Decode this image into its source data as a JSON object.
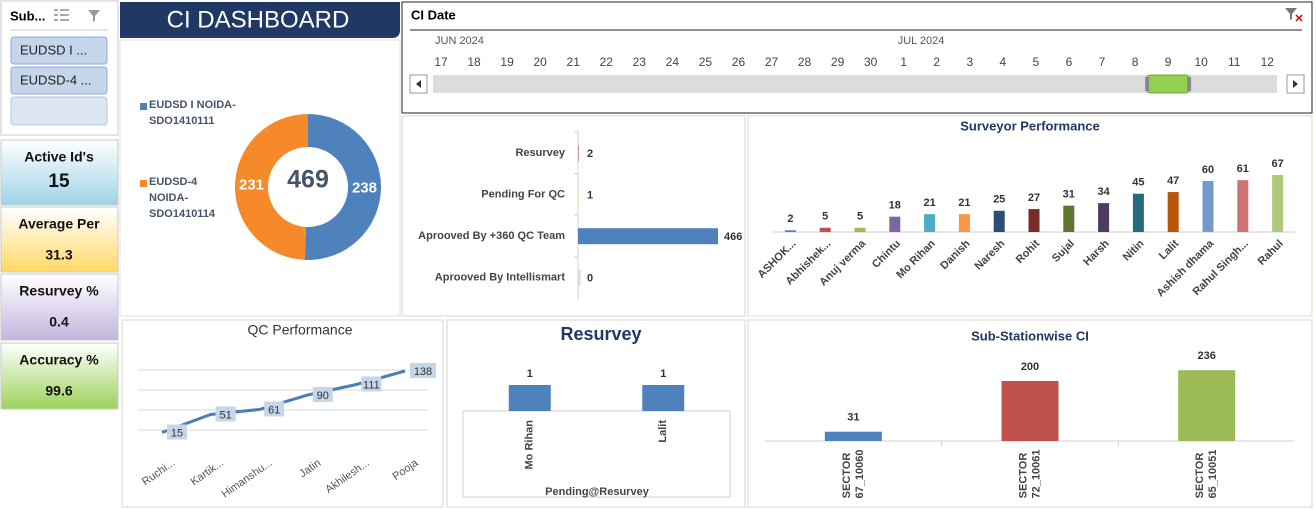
{
  "header": {
    "title": "CI DASHBOARD"
  },
  "slicer": {
    "title": "Sub...",
    "items": [
      "EUDSD I ...",
      "EUDSD-4 ..."
    ]
  },
  "kpis": [
    {
      "label": "Active Id's",
      "value": 15
    },
    {
      "label": "Average Per",
      "value": 31.3
    },
    {
      "label": "Resurvey %",
      "value": 0.4
    },
    {
      "label": "Accuracy %",
      "value": 99.6
    }
  ],
  "date_slicer": {
    "title": "CI Date",
    "months": [
      "JUN 2024",
      "JUL 2024"
    ],
    "days": [
      17,
      18,
      19,
      20,
      21,
      22,
      23,
      24,
      25,
      26,
      27,
      28,
      29,
      30,
      1,
      2,
      3,
      4,
      5,
      6,
      7,
      8,
      9,
      10,
      11,
      12
    ],
    "selected": 9
  },
  "chart_data": [
    {
      "type": "donut",
      "categories": [
        "EUDSD I NOIDA-SDO1410111",
        "EUDSD-4 NOIDA-SDO1410114"
      ],
      "values": [
        238,
        231
      ],
      "colors": [
        "#4f81bd",
        "#f68a2a"
      ],
      "total": 469
    },
    {
      "type": "hbar",
      "categories": [
        "Resurvey",
        "Pending For QC",
        "Aprooved By +360 QC Team",
        "Aprooved By Intellismart"
      ],
      "values": [
        2,
        1,
        466,
        0
      ],
      "colors": [
        "#c0504d",
        "#f2c85b",
        "#4f81bd",
        "#bfbfbf"
      ],
      "xlim": [
        0,
        466
      ]
    },
    {
      "type": "bar",
      "title": "Surveyor Performance",
      "categories": [
        "ASHOK...",
        "Abhishek...",
        "Anuj verma",
        "Chintu",
        "Mo Rihan",
        "Danish",
        "Naresh",
        "Rohit",
        "Sujal",
        "Harsh",
        "Nitin",
        "Lalit",
        "Ashish dhama",
        "Rahul Singh...",
        "Rahul"
      ],
      "values": [
        2,
        5,
        5,
        18,
        21,
        21,
        25,
        27,
        31,
        34,
        45,
        47,
        60,
        61,
        67
      ],
      "colors": [
        "#4f81bd",
        "#c0504d",
        "#9bbb59",
        "#8064a2",
        "#4bacc6",
        "#f79646",
        "#2c4d75",
        "#772c2a",
        "#5f7530",
        "#4d3b62",
        "#276a7c",
        "#b65708",
        "#729aca",
        "#cd7371",
        "#afc97a"
      ],
      "ylim": [
        0,
        80
      ]
    },
    {
      "type": "line",
      "title": "QC Performance",
      "categories": [
        "Ruchi...",
        "Kartik...",
        "Himanshu...",
        "Jatin",
        "Akhilesh...",
        "Pooja"
      ],
      "values": [
        15,
        51,
        61,
        90,
        111,
        138
      ],
      "color": "#4a7ebb",
      "ylim": [
        0,
        160
      ],
      "yticks": [
        20,
        60,
        100,
        140
      ],
      "grid": true
    },
    {
      "type": "bar",
      "title": "Resurvey",
      "x_label": "Pending@Resurvey",
      "categories": [
        "Mo Rihan",
        "Lalit"
      ],
      "values": [
        1,
        1
      ],
      "colors": [
        "#4f81bd",
        "#4f81bd"
      ],
      "ylim": [
        0,
        1.5
      ]
    },
    {
      "type": "bar",
      "title": "Sub-Stationwise CI",
      "categories": [
        "SECTOR 67_10060",
        "SECTOR 72_10061",
        "SECTOR 65_10051"
      ],
      "values": [
        31,
        200,
        236
      ],
      "colors": [
        "#4f81bd",
        "#c0504d",
        "#9bbb59"
      ],
      "ylim": [
        0,
        300
      ]
    }
  ]
}
